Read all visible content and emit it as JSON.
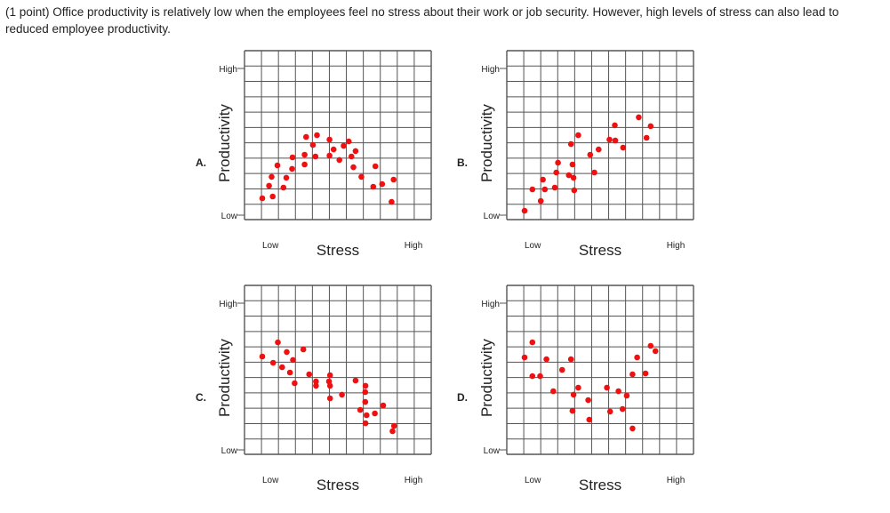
{
  "question": "(1 point) Office productivity is relatively low when the employees feel no stress about their work or job security. However, high levels of stress can also lead to reduced employee productivity.",
  "colors": {
    "points": "#ee1111",
    "grid": "#555555",
    "text": "#222222"
  },
  "chart_data": [
    {
      "type": "scatter",
      "option": "A.",
      "xlabel": "Stress",
      "ylabel": "Productivity",
      "x_low": "Low",
      "x_high": "High",
      "y_low": "Low",
      "y_high": "High",
      "xlim": [
        0,
        1
      ],
      "ylim": [
        0,
        1
      ],
      "grid": true,
      "points": [
        {
          "x": 0.0,
          "y": 0.131
        },
        {
          "x": 0.045,
          "y": 0.228
        },
        {
          "x": 0.062,
          "y": 0.297
        },
        {
          "x": 0.069,
          "y": 0.145
        },
        {
          "x": 0.1,
          "y": 0.386
        },
        {
          "x": 0.14,
          "y": 0.214
        },
        {
          "x": 0.159,
          "y": 0.29
        },
        {
          "x": 0.197,
          "y": 0.359
        },
        {
          "x": 0.2,
          "y": 0.448
        },
        {
          "x": 0.28,
          "y": 0.393
        },
        {
          "x": 0.28,
          "y": 0.469
        },
        {
          "x": 0.29,
          "y": 0.607
        },
        {
          "x": 0.335,
          "y": 0.545
        },
        {
          "x": 0.352,
          "y": 0.455
        },
        {
          "x": 0.362,
          "y": 0.621
        },
        {
          "x": 0.445,
          "y": 0.462
        },
        {
          "x": 0.445,
          "y": 0.586
        },
        {
          "x": 0.472,
          "y": 0.51
        },
        {
          "x": 0.51,
          "y": 0.428
        },
        {
          "x": 0.538,
          "y": 0.538
        },
        {
          "x": 0.572,
          "y": 0.572
        },
        {
          "x": 0.59,
          "y": 0.455
        },
        {
          "x": 0.603,
          "y": 0.372
        },
        {
          "x": 0.617,
          "y": 0.497
        },
        {
          "x": 0.655,
          "y": 0.297
        },
        {
          "x": 0.734,
          "y": 0.221
        },
        {
          "x": 0.748,
          "y": 0.379
        },
        {
          "x": 0.793,
          "y": 0.241
        },
        {
          "x": 0.855,
          "y": 0.103
        },
        {
          "x": 0.869,
          "y": 0.276
        }
      ]
    },
    {
      "type": "scatter",
      "option": "B.",
      "xlabel": "Stress",
      "ylabel": "Productivity",
      "x_low": "Low",
      "x_high": "High",
      "y_low": "Low",
      "y_high": "High",
      "xlim": [
        0,
        1
      ],
      "ylim": [
        0,
        1
      ],
      "grid": true,
      "points": [
        {
          "x": 0.0,
          "y": 0.034
        },
        {
          "x": 0.052,
          "y": 0.2
        },
        {
          "x": 0.107,
          "y": 0.11
        },
        {
          "x": 0.121,
          "y": 0.276
        },
        {
          "x": 0.134,
          "y": 0.2
        },
        {
          "x": 0.2,
          "y": 0.214
        },
        {
          "x": 0.21,
          "y": 0.331
        },
        {
          "x": 0.221,
          "y": 0.407
        },
        {
          "x": 0.293,
          "y": 0.31
        },
        {
          "x": 0.307,
          "y": 0.552
        },
        {
          "x": 0.317,
          "y": 0.393
        },
        {
          "x": 0.324,
          "y": 0.29
        },
        {
          "x": 0.328,
          "y": 0.193
        },
        {
          "x": 0.355,
          "y": 0.621
        },
        {
          "x": 0.434,
          "y": 0.469
        },
        {
          "x": 0.462,
          "y": 0.331
        },
        {
          "x": 0.49,
          "y": 0.51
        },
        {
          "x": 0.562,
          "y": 0.586
        },
        {
          "x": 0.597,
          "y": 0.697
        },
        {
          "x": 0.6,
          "y": 0.579
        },
        {
          "x": 0.652,
          "y": 0.524
        },
        {
          "x": 0.755,
          "y": 0.759
        },
        {
          "x": 0.807,
          "y": 0.6
        },
        {
          "x": 0.834,
          "y": 0.69
        }
      ]
    },
    {
      "type": "scatter",
      "option": "C.",
      "xlabel": "Stress",
      "ylabel": "Productivity",
      "x_low": "Low",
      "x_high": "High",
      "y_low": "Low",
      "y_high": "High",
      "xlim": [
        0,
        1
      ],
      "ylim": [
        0,
        1
      ],
      "grid": true,
      "points": [
        {
          "x": 0.0,
          "y": 0.724
        },
        {
          "x": 0.072,
          "y": 0.676
        },
        {
          "x": 0.103,
          "y": 0.834
        },
        {
          "x": 0.131,
          "y": 0.641
        },
        {
          "x": 0.162,
          "y": 0.759
        },
        {
          "x": 0.183,
          "y": 0.6
        },
        {
          "x": 0.203,
          "y": 0.697
        },
        {
          "x": 0.214,
          "y": 0.517
        },
        {
          "x": 0.272,
          "y": 0.779
        },
        {
          "x": 0.31,
          "y": 0.586
        },
        {
          "x": 0.355,
          "y": 0.531
        },
        {
          "x": 0.355,
          "y": 0.497
        },
        {
          "x": 0.441,
          "y": 0.531
        },
        {
          "x": 0.448,
          "y": 0.4
        },
        {
          "x": 0.448,
          "y": 0.579
        },
        {
          "x": 0.448,
          "y": 0.497
        },
        {
          "x": 0.527,
          "y": 0.428
        },
        {
          "x": 0.617,
          "y": 0.538
        },
        {
          "x": 0.648,
          "y": 0.31
        },
        {
          "x": 0.681,
          "y": 0.448
        },
        {
          "x": 0.681,
          "y": 0.372
        },
        {
          "x": 0.683,
          "y": 0.207
        },
        {
          "x": 0.683,
          "y": 0.497
        },
        {
          "x": 0.69,
          "y": 0.269
        },
        {
          "x": 0.745,
          "y": 0.283
        },
        {
          "x": 0.8,
          "y": 0.345
        },
        {
          "x": 0.862,
          "y": 0.145
        },
        {
          "x": 0.872,
          "y": 0.186
        }
      ]
    },
    {
      "type": "scatter",
      "option": "D.",
      "xlabel": "Stress",
      "ylabel": "Productivity",
      "x_low": "Low",
      "x_high": "High",
      "y_low": "Low",
      "y_high": "High",
      "xlim": [
        0,
        1
      ],
      "ylim": [
        0,
        1
      ],
      "grid": true,
      "points": [
        {
          "x": 0.0,
          "y": 0.717
        },
        {
          "x": 0.052,
          "y": 0.834
        },
        {
          "x": 0.052,
          "y": 0.572
        },
        {
          "x": 0.103,
          "y": 0.572
        },
        {
          "x": 0.145,
          "y": 0.703
        },
        {
          "x": 0.19,
          "y": 0.455
        },
        {
          "x": 0.248,
          "y": 0.621
        },
        {
          "x": 0.307,
          "y": 0.703
        },
        {
          "x": 0.317,
          "y": 0.303
        },
        {
          "x": 0.324,
          "y": 0.428
        },
        {
          "x": 0.355,
          "y": 0.483
        },
        {
          "x": 0.421,
          "y": 0.386
        },
        {
          "x": 0.428,
          "y": 0.234
        },
        {
          "x": 0.545,
          "y": 0.483
        },
        {
          "x": 0.566,
          "y": 0.297
        },
        {
          "x": 0.621,
          "y": 0.455
        },
        {
          "x": 0.648,
          "y": 0.317
        },
        {
          "x": 0.676,
          "y": 0.421
        },
        {
          "x": 0.714,
          "y": 0.166
        },
        {
          "x": 0.714,
          "y": 0.586
        },
        {
          "x": 0.745,
          "y": 0.717
        },
        {
          "x": 0.8,
          "y": 0.593
        },
        {
          "x": 0.834,
          "y": 0.807
        },
        {
          "x": 0.866,
          "y": 0.766
        }
      ]
    }
  ]
}
